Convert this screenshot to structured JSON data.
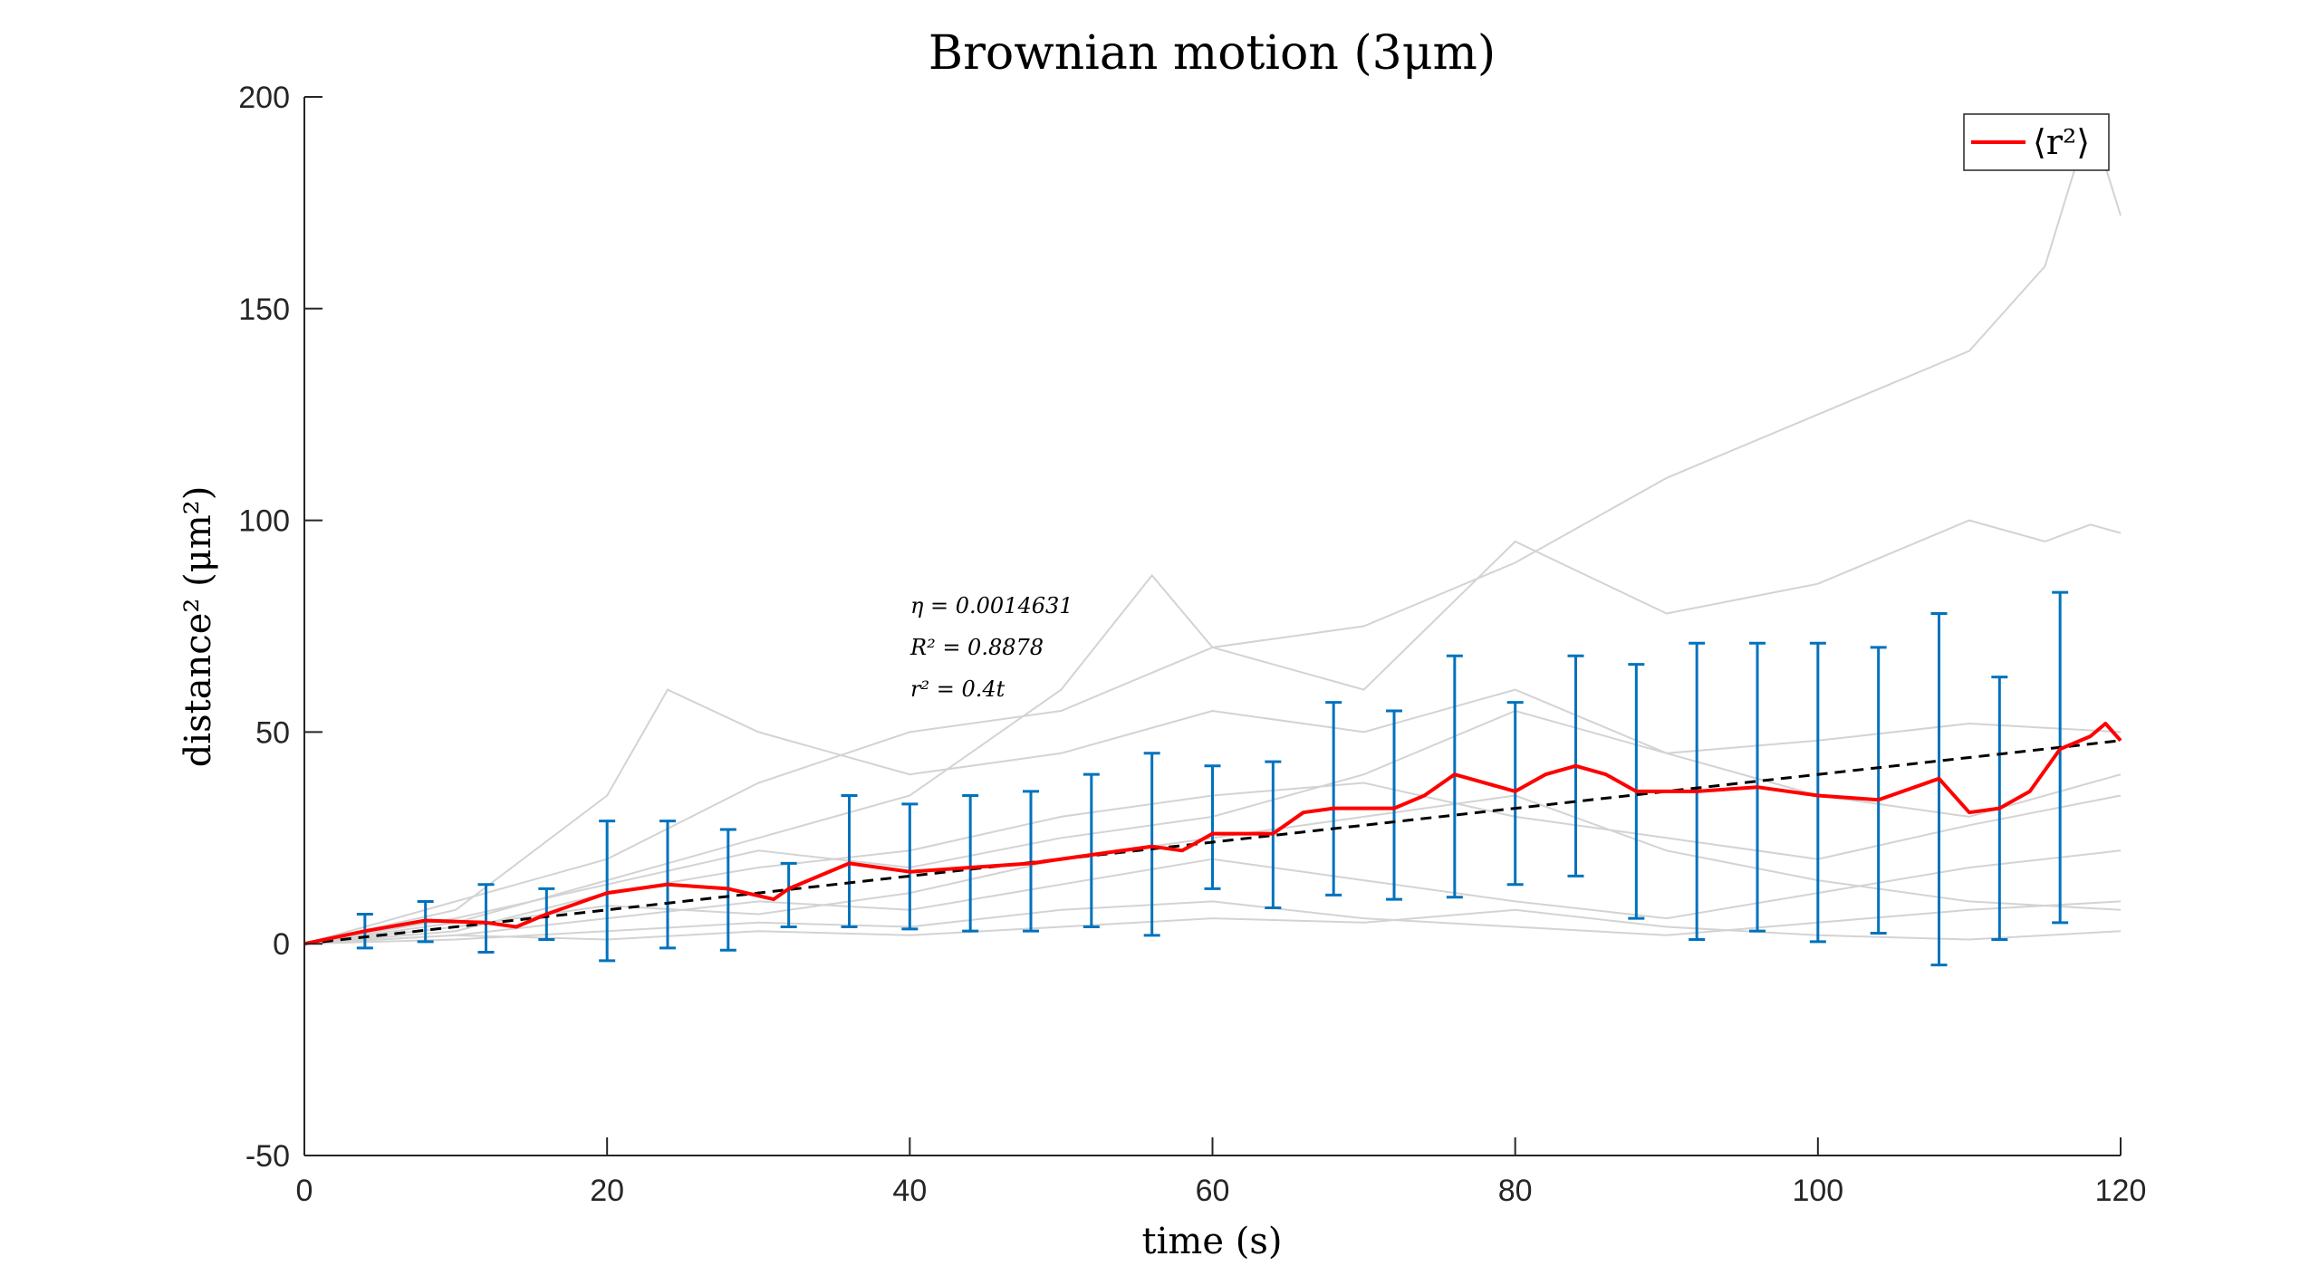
{
  "chart_data": {
    "type": "line",
    "title": "Brownian motion (3μm)",
    "xlabel": "time (s)",
    "ylabel": "distance² (μm²)",
    "xlim": [
      0,
      120
    ],
    "ylim": [
      -50,
      200
    ],
    "xticks": [
      0,
      20,
      40,
      60,
      80,
      100,
      120
    ],
    "yticks": [
      -50,
      0,
      50,
      100,
      150,
      200
    ],
    "grid": false,
    "legend": {
      "placement": "top-right",
      "entries": [
        "⟨r²⟩"
      ]
    },
    "annotations": [
      "η = 0.0014631",
      "R² = 0.8878",
      "r² = 0.4t"
    ],
    "colors": {
      "mean": "#ff0000",
      "errorbar": "#0072bd",
      "fit": "#000000",
      "trajectories": "#d3d3d3"
    },
    "mean_curve": {
      "name": "⟨r²⟩",
      "x": [
        0,
        4,
        8,
        12,
        14,
        16,
        20,
        22,
        24,
        28,
        31,
        32,
        36,
        40,
        44,
        48,
        52,
        56,
        58,
        60,
        64,
        66,
        68,
        72,
        74,
        76,
        80,
        82,
        84,
        86,
        88,
        92,
        96,
        100,
        104,
        108,
        110,
        112,
        114,
        116,
        118,
        119,
        120
      ],
      "y": [
        0,
        3,
        5.5,
        5,
        4,
        7,
        12,
        13,
        14,
        13,
        10.5,
        13,
        19,
        17,
        18,
        19,
        21,
        23,
        22,
        26,
        26,
        31,
        32,
        32,
        35,
        40,
        36,
        40,
        42,
        40,
        36,
        36,
        37,
        35,
        34,
        39,
        31,
        32,
        36,
        46,
        49,
        52,
        48
      ]
    },
    "fit_line": {
      "x": [
        0,
        120
      ],
      "y": [
        0,
        48
      ]
    },
    "error_bars": {
      "x": [
        4,
        8,
        12,
        16,
        20,
        24,
        28,
        32,
        36,
        40,
        44,
        48,
        52,
        56,
        60,
        64,
        68,
        72,
        76,
        80,
        84,
        88,
        92,
        96,
        100,
        104,
        108,
        112,
        116
      ],
      "lower": [
        -1,
        0.5,
        -2,
        1,
        -4,
        -1,
        -1.5,
        4,
        4,
        3.5,
        3,
        3,
        4,
        2,
        13,
        8.5,
        11.5,
        10.5,
        11,
        14,
        16,
        6,
        1,
        3,
        0.5,
        2.5,
        -5,
        1,
        5
      ],
      "upper": [
        7,
        10,
        14,
        13,
        29,
        29,
        27,
        19,
        35,
        33,
        35,
        36,
        40,
        45,
        42,
        43,
        57,
        55,
        68,
        57,
        68,
        66,
        71,
        71,
        71,
        70,
        78,
        63,
        83
      ]
    },
    "trajectories": [
      {
        "x": [
          0,
          10,
          20,
          30,
          40,
          50,
          56,
          60,
          70,
          80,
          90,
          100,
          110,
          115,
          118,
          120
        ],
        "y": [
          0,
          5,
          15,
          25,
          35,
          60,
          87,
          70,
          75,
          90,
          110,
          125,
          140,
          160,
          195,
          172
        ]
      },
      {
        "x": [
          0,
          10,
          20,
          30,
          40,
          50,
          60,
          70,
          80,
          90,
          100,
          110,
          115,
          118,
          120
        ],
        "y": [
          0,
          10,
          20,
          38,
          50,
          55,
          70,
          60,
          95,
          78,
          85,
          100,
          95,
          99,
          97
        ]
      },
      {
        "x": [
          0,
          10,
          20,
          24,
          30,
          40,
          50,
          60,
          70,
          80,
          90,
          100,
          110,
          120
        ],
        "y": [
          0,
          8,
          35,
          60,
          50,
          40,
          45,
          55,
          50,
          60,
          45,
          48,
          52,
          50
        ]
      },
      {
        "x": [
          0,
          10,
          20,
          30,
          40,
          50,
          60,
          70,
          80,
          90,
          100,
          110,
          120
        ],
        "y": [
          0,
          3,
          12,
          18,
          22,
          30,
          35,
          38,
          30,
          25,
          20,
          28,
          35
        ]
      },
      {
        "x": [
          0,
          10,
          20,
          30,
          40,
          50,
          60,
          70,
          80,
          90,
          100,
          110,
          120
        ],
        "y": [
          0,
          2,
          6,
          10,
          8,
          14,
          20,
          15,
          10,
          6,
          12,
          18,
          22
        ]
      },
      {
        "x": [
          0,
          10,
          20,
          30,
          40,
          50,
          60,
          70,
          80,
          90,
          100,
          110,
          120
        ],
        "y": [
          0,
          1,
          3,
          5,
          4,
          8,
          10,
          6,
          4,
          2,
          5,
          8,
          10
        ]
      },
      {
        "x": [
          0,
          10,
          20,
          30,
          40,
          50,
          60,
          70,
          80,
          90,
          100,
          110,
          120
        ],
        "y": [
          0,
          4,
          9,
          7,
          12,
          20,
          25,
          30,
          35,
          22,
          15,
          10,
          8
        ]
      },
      {
        "x": [
          0,
          10,
          20,
          30,
          40,
          50,
          60,
          70,
          80,
          90,
          100,
          110,
          120
        ],
        "y": [
          0,
          2,
          1,
          3,
          2,
          4,
          6,
          5,
          8,
          4,
          2,
          1,
          3
        ]
      },
      {
        "x": [
          0,
          10,
          20,
          30,
          40,
          50,
          60,
          70,
          80,
          90,
          100,
          110,
          120
        ],
        "y": [
          0,
          6,
          14,
          22,
          18,
          25,
          30,
          40,
          55,
          45,
          35,
          30,
          40
        ]
      }
    ]
  }
}
